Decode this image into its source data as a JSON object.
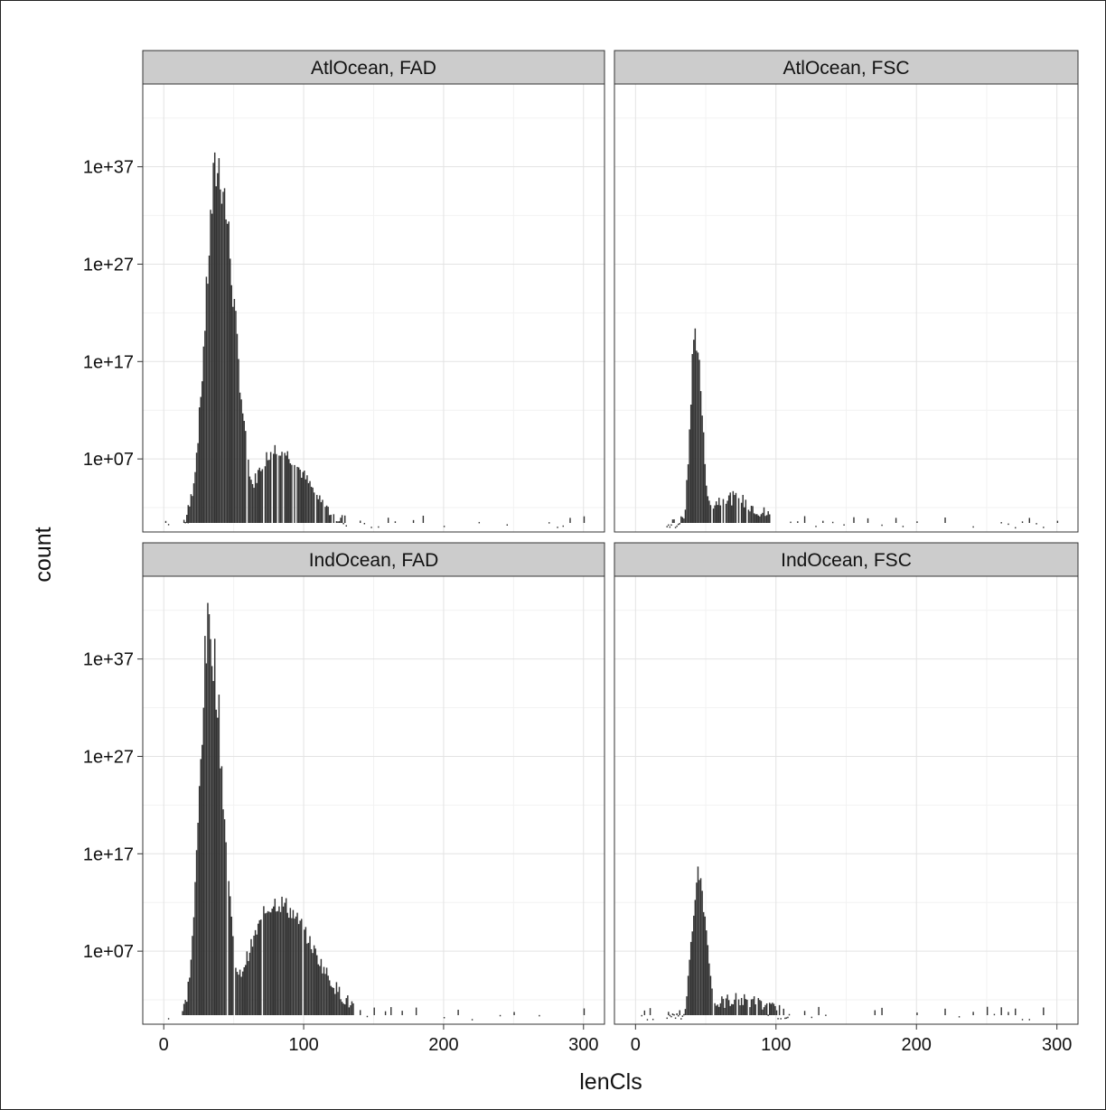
{
  "chart_data": {
    "type": "bar",
    "chart_kind": "faceted-histogram",
    "xlabel": "lenCls",
    "ylabel": "count",
    "y_scale": "exponential (log of count)",
    "xlim": [
      -15,
      315
    ],
    "x_ticks": [
      "0",
      "100",
      "200",
      "300"
    ],
    "x_tick_values": [
      0,
      100,
      200,
      300
    ],
    "y_ticks": [
      "1e+07",
      "1e+17",
      "1e+27",
      "1e+37"
    ],
    "y_tick_exponents": [
      7,
      17,
      27,
      37
    ],
    "ylim_exponent": [
      -0.5,
      45.5
    ],
    "bar_color": "#333333",
    "panel_background": "#ffffff",
    "strip_color": "#cccccc",
    "grid": true,
    "facets": [
      {
        "label": "AtlOcean, FAD",
        "peaks": [
          {
            "x": 38,
            "exp": 37,
            "width": 10,
            "side": "both"
          },
          {
            "x": 80,
            "exp": 8,
            "width": 18,
            "side": "both"
          }
        ],
        "tail_end": 130,
        "sparse": [
          1,
          3,
          17,
          140,
          143,
          148,
          153,
          160,
          165,
          178,
          185,
          200,
          225,
          245,
          275,
          281,
          285,
          290,
          300
        ]
      },
      {
        "label": "AtlOcean, FSC",
        "peaks": [
          {
            "x": 42,
            "exp": 20,
            "width": 4,
            "side": "both"
          },
          {
            "x": 65,
            "exp": 3,
            "width": 18,
            "side": "both"
          }
        ],
        "tail_end": 95,
        "sparse": [
          110,
          115,
          120,
          128,
          133,
          140,
          148,
          155,
          165,
          175,
          185,
          190,
          200,
          220,
          240,
          260,
          265,
          270,
          275,
          280,
          285,
          290,
          300
        ]
      },
      {
        "label": "IndOcean, FAD",
        "peaks": [
          {
            "x": 32,
            "exp": 40,
            "width": 8,
            "side": "both"
          },
          {
            "x": 80,
            "exp": 12,
            "width": 22,
            "side": "both"
          }
        ],
        "tail_end": 135,
        "sparse": [
          3,
          140,
          145,
          150,
          158,
          162,
          170,
          180,
          200,
          210,
          220,
          240,
          250,
          268,
          300
        ]
      },
      {
        "label": "IndOcean, FSC",
        "peaks": [
          {
            "x": 44,
            "exp": 15,
            "width": 5,
            "side": "both"
          },
          {
            "x": 70,
            "exp": 2,
            "width": 20,
            "side": "both"
          }
        ],
        "tail_end": 110,
        "sparse": [
          4,
          6,
          8,
          10,
          12,
          120,
          125,
          130,
          135,
          170,
          175,
          200,
          220,
          230,
          240,
          250,
          255,
          260,
          265,
          270,
          275,
          280,
          290
        ]
      }
    ]
  }
}
